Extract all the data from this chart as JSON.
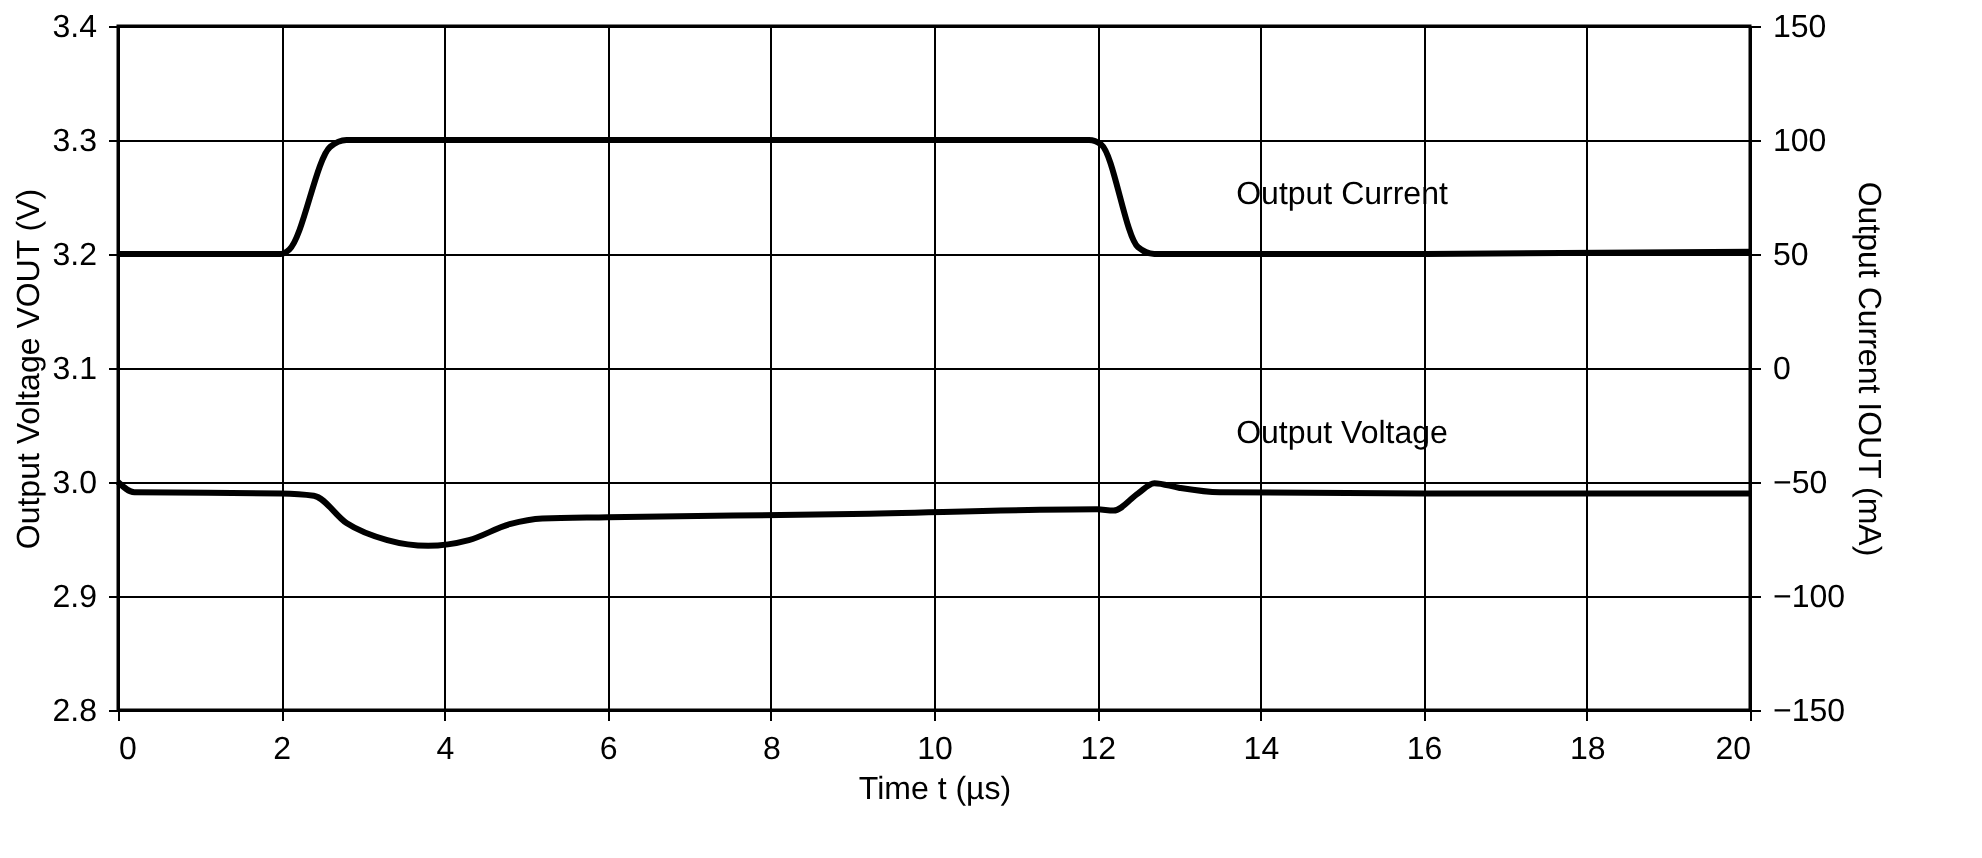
{
  "chart_data": {
    "type": "line",
    "xlabel": "Time t (µs)",
    "ylabel": "Output Voltage VOUT (V)",
    "y2label": "Output Current IOUT (mA)",
    "xlim": [
      0,
      20
    ],
    "xticks": [
      0,
      2,
      4,
      6,
      8,
      10,
      12,
      14,
      16,
      18,
      20
    ],
    "ylim": [
      2.8,
      3.4
    ],
    "yticks": [
      2.8,
      2.9,
      {
        "value": 3.0,
        "label": "3.0"
      },
      3.1,
      3.2,
      3.3,
      3.4
    ],
    "y2lim": [
      -150,
      150
    ],
    "y2ticks": [
      -150,
      -100,
      -50,
      0,
      50,
      100,
      150
    ],
    "grid": true,
    "line_style": "solid",
    "marker": "none",
    "series": [
      {
        "name": "Output Current",
        "color": "#000000",
        "axis": "y2",
        "x": [
          0,
          2.0,
          2.1,
          2.6,
          2.8,
          11.9,
          12.05,
          12.5,
          12.7,
          16,
          20
        ],
        "values": [
          50,
          50,
          52,
          97,
          100,
          100,
          98,
          53,
          50,
          50,
          51
        ]
      },
      {
        "name": "Output Voltage",
        "color": "#000000",
        "x": [
          0,
          0.2,
          2.0,
          2.4,
          2.8,
          3.3,
          3.8,
          4.3,
          4.8,
          5.2,
          6,
          9,
          12.0,
          12.2,
          12.5,
          12.7,
          13.0,
          13.5,
          16,
          20
        ],
        "values": [
          3.0,
          2.991,
          2.99,
          2.988,
          2.964,
          2.949,
          2.944,
          2.949,
          2.963,
          2.968,
          2.969,
          2.972,
          2.976,
          2.975,
          2.99,
          2.999,
          2.995,
          2.991,
          2.99,
          2.99
        ]
      }
    ]
  }
}
